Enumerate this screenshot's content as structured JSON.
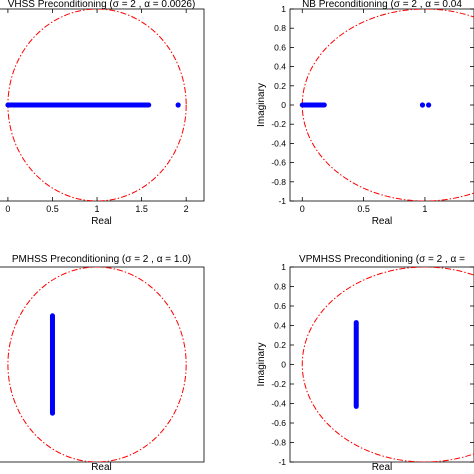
{
  "chart_data": [
    {
      "type": "scatter",
      "title": "VHSS Preconditioning (σ = 2 , α = 0.0026)",
      "xlabel": "Real",
      "ylabel": "",
      "xlim": [
        -0.1,
        2.2
      ],
      "ylim": [
        -1,
        1
      ],
      "xticks": [
        "0",
        "0.5",
        "1",
        "1.5",
        "2"
      ],
      "yticks": [],
      "circle": {
        "center": [
          1,
          0
        ],
        "radius": 1,
        "style": "red dash-dot"
      },
      "eigen_segments": [
        {
          "x": [
            0.0,
            1.58
          ],
          "y": [
            0,
            0
          ]
        }
      ],
      "eigen_points": [
        {
          "x": 1.91,
          "y": 0
        }
      ],
      "grid": false
    },
    {
      "type": "scatter",
      "title": "NB Preconditioning (σ = 2 , α = 0.04",
      "xlabel": "Real",
      "ylabel": "Imaginary",
      "xlim": [
        -0.1,
        1.4
      ],
      "ylim": [
        -1,
        1
      ],
      "xticks": [
        "0",
        "0.5",
        "1"
      ],
      "yticks": [
        "1",
        "0.8",
        "0.6",
        "0.4",
        "0.2",
        "0",
        "-0.2",
        "-0.4",
        "-0.6",
        "-0.8",
        "-1"
      ],
      "circle": {
        "center": [
          1,
          0
        ],
        "radius": 1,
        "style": "red dash-dot"
      },
      "eigen_segments": [
        {
          "x": [
            0.0,
            0.18
          ],
          "y": [
            0,
            0
          ]
        }
      ],
      "eigen_points": [
        {
          "x": 0.98,
          "y": 0
        },
        {
          "x": 1.03,
          "y": 0
        }
      ],
      "grid": false
    },
    {
      "type": "scatter",
      "title": "PMHSS Preconditioning (σ = 2 , α = 1.0)",
      "xlabel": "Real",
      "ylabel": "",
      "xlim": [
        -0.1,
        2.2
      ],
      "ylim": [
        -1,
        1
      ],
      "xticks": [],
      "yticks": [],
      "circle": {
        "center": [
          1,
          0
        ],
        "radius": 1,
        "style": "red dash-dot"
      },
      "eigen_segments": [
        {
          "x": [
            0.5,
            0.5
          ],
          "y": [
            -0.5,
            0.5
          ]
        }
      ],
      "eigen_points": [],
      "grid": false
    },
    {
      "type": "scatter",
      "title": "VPMHSS Preconditioning (σ = 2 , α =",
      "xlabel": "Real",
      "ylabel": "Imaginary",
      "xlim": [
        -0.1,
        1.4
      ],
      "ylim": [
        -1,
        1
      ],
      "xticks": [],
      "yticks": [
        "1",
        "0.8",
        "0.6",
        "0.4",
        "0.2",
        "0",
        "-0.2",
        "-0.4",
        "-0.6",
        "-0.8",
        "-1"
      ],
      "circle": {
        "center": [
          1,
          0
        ],
        "radius": 1,
        "style": "red dash-dot"
      },
      "eigen_segments": [
        {
          "x": [
            0.44,
            0.44
          ],
          "y": [
            -0.43,
            0.43
          ]
        }
      ],
      "eigen_points": [],
      "grid": false
    }
  ],
  "colors": {
    "eigen": "#0000ff",
    "circle": "#ff0000",
    "axes": "#000000"
  }
}
